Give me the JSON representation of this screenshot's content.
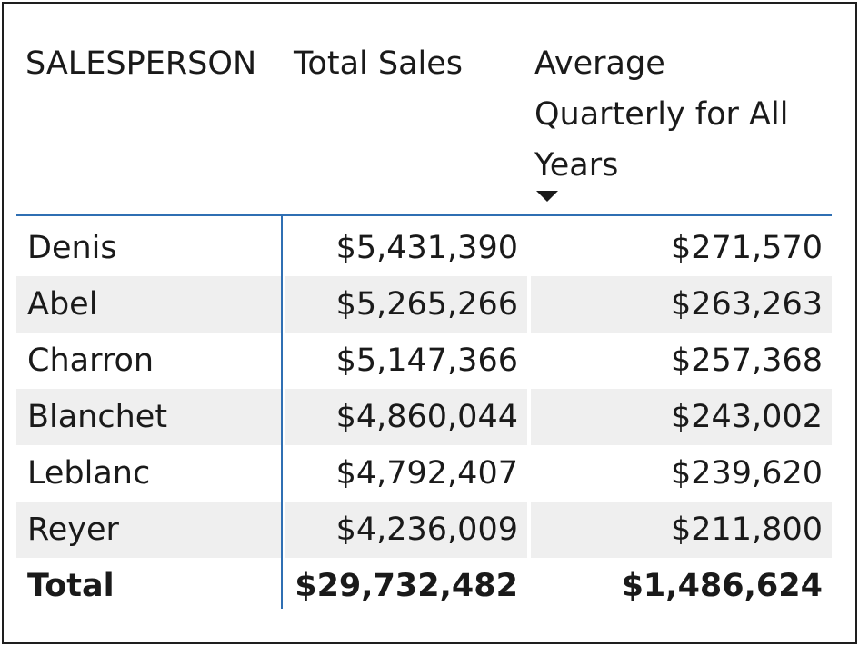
{
  "table": {
    "headers": {
      "salesperson": "SALESPERSON",
      "total_sales": "Total Sales",
      "avg_quarterly": "Average Quarterly for All Years"
    },
    "sort_indicator": "sort-descending-icon",
    "rows": [
      {
        "name": "Denis",
        "total": "$5,431,390",
        "avg": "$271,570"
      },
      {
        "name": "Abel",
        "total": "$5,265,266",
        "avg": "$263,263"
      },
      {
        "name": "Charron",
        "total": "$5,147,366",
        "avg": "$257,368"
      },
      {
        "name": "Blanchet",
        "total": "$4,860,044",
        "avg": "$243,002"
      },
      {
        "name": "Leblanc",
        "total": "$4,792,407",
        "avg": "$239,620"
      },
      {
        "name": "Reyer",
        "total": "$4,236,009",
        "avg": "$211,800"
      }
    ],
    "total_row": {
      "name": "Total",
      "total": "$29,732,482",
      "avg": "$1,486,624"
    },
    "colors": {
      "divider": "#2f6fb3",
      "alt_row": "#efefef"
    }
  }
}
